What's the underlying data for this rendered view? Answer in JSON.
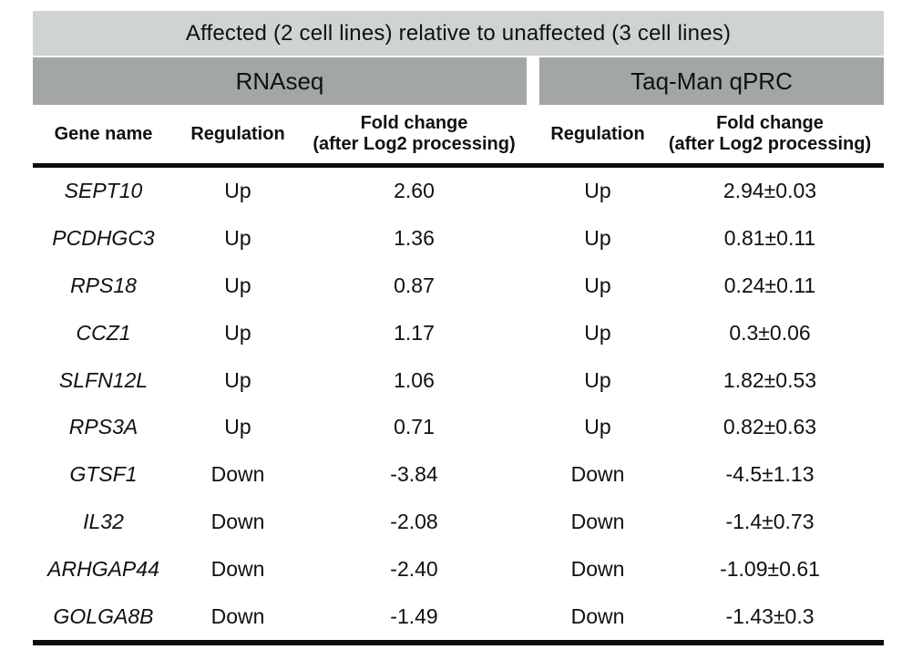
{
  "figure": {
    "title": "Affected (2 cell lines) relative to unaffected (3 cell lines)",
    "sections": {
      "rnaseq": "RNAseq",
      "qpcr": "Taq-Man qPRC"
    },
    "columns": {
      "gene": "Gene name",
      "regulation": "Regulation",
      "fold_change_line1": "Fold change",
      "fold_change_line2": "(after Log2 processing)"
    },
    "rows": [
      {
        "gene": "SEPT10",
        "rnaseq_regulation": "Up",
        "rnaseq_fold_change": "2.60",
        "qpcr_regulation": "Up",
        "qpcr_fold_change": "2.94±0.03"
      },
      {
        "gene": "PCDHGC3",
        "rnaseq_regulation": "Up",
        "rnaseq_fold_change": "1.36",
        "qpcr_regulation": "Up",
        "qpcr_fold_change": "0.81±0.11"
      },
      {
        "gene": "RPS18",
        "rnaseq_regulation": "Up",
        "rnaseq_fold_change": "0.87",
        "qpcr_regulation": "Up",
        "qpcr_fold_change": "0.24±0.11"
      },
      {
        "gene": "CCZ1",
        "rnaseq_regulation": "Up",
        "rnaseq_fold_change": "1.17",
        "qpcr_regulation": "Up",
        "qpcr_fold_change": "0.3±0.06"
      },
      {
        "gene": "SLFN12L",
        "rnaseq_regulation": "Up",
        "rnaseq_fold_change": "1.06",
        "qpcr_regulation": "Up",
        "qpcr_fold_change": "1.82±0.53"
      },
      {
        "gene": "RPS3A",
        "rnaseq_regulation": "Up",
        "rnaseq_fold_change": "0.71",
        "qpcr_regulation": "Up",
        "qpcr_fold_change": "0.82±0.63"
      },
      {
        "gene": "GTSF1",
        "rnaseq_regulation": "Down",
        "rnaseq_fold_change": "-3.84",
        "qpcr_regulation": "Down",
        "qpcr_fold_change": "-4.5±1.13"
      },
      {
        "gene": "IL32",
        "rnaseq_regulation": "Down",
        "rnaseq_fold_change": "-2.08",
        "qpcr_regulation": "Down",
        "qpcr_fold_change": "-1.4±0.73"
      },
      {
        "gene": "ARHGAP44",
        "rnaseq_regulation": "Down",
        "rnaseq_fold_change": "-2.40",
        "qpcr_regulation": "Down",
        "qpcr_fold_change": "-1.09±0.61"
      },
      {
        "gene": "GOLGA8B",
        "rnaseq_regulation": "Down",
        "rnaseq_fold_change": "-1.49",
        "qpcr_regulation": "Down",
        "qpcr_fold_change": "-1.43±0.3"
      }
    ],
    "colors": {
      "title_bg": "#cfd3d3",
      "section_bg": "#a3a6a6",
      "rule": "#0d0d0d",
      "text": "#111111",
      "background": "#ffffff"
    }
  }
}
